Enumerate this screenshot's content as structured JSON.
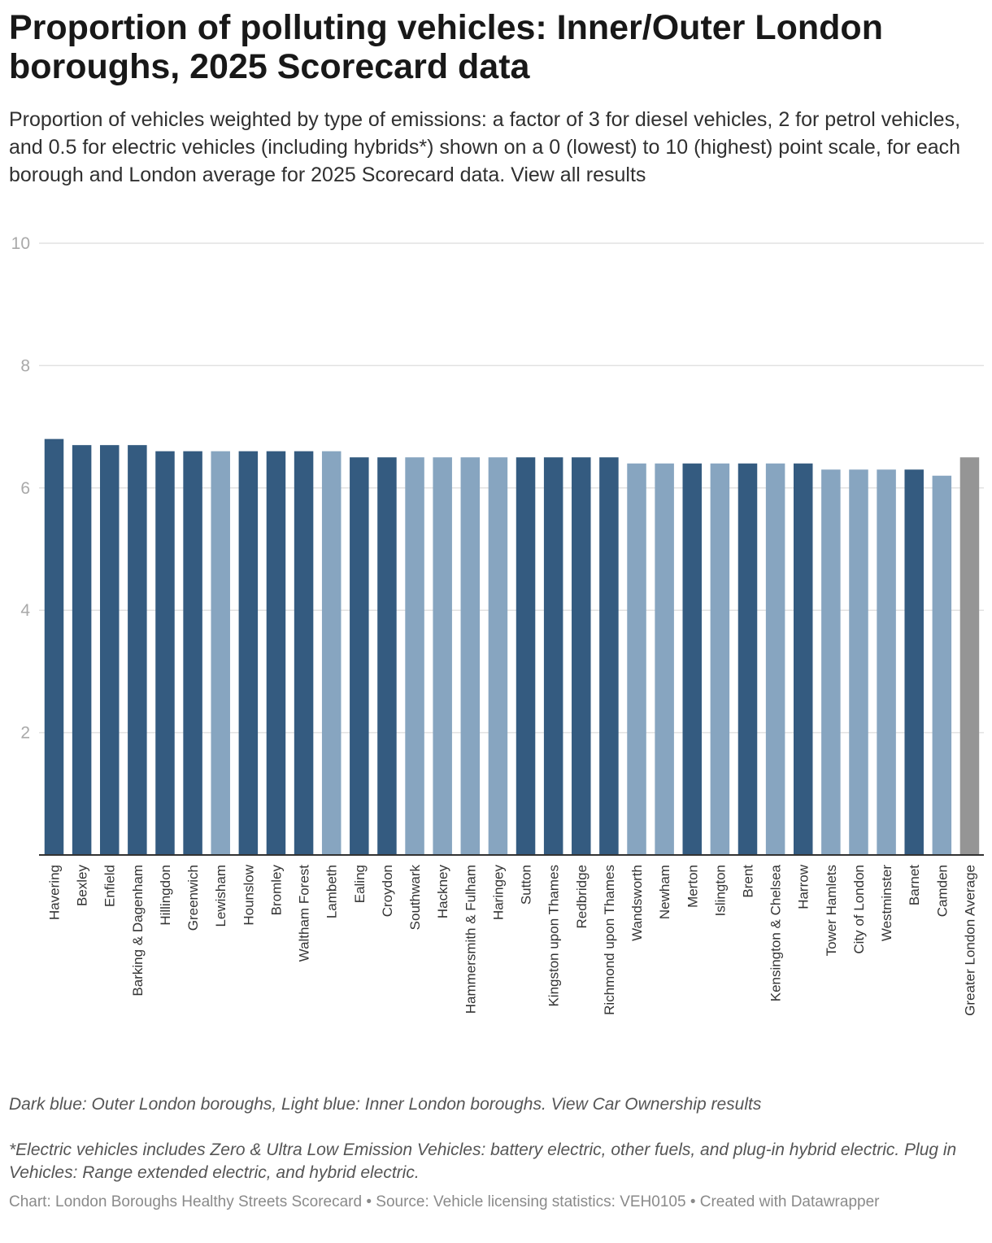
{
  "chart_data": {
    "type": "bar",
    "title": "Proportion of polluting vehicles: Inner/Outer London boroughs, 2025 Scorecard data",
    "subtitle": "Proportion of vehicles weighted by type of emissions: a factor of 3 for diesel vehicles, 2 for petrol vehicles, and 0.5 for electric vehicles (including hybrids*) shown on a 0 (lowest) to 10 (highest) point scale, for each borough and London average for 2025 Scorecard data. View all results",
    "xlabel": "",
    "ylabel": "",
    "ylim": [
      0,
      10
    ],
    "yticks": [
      2,
      4,
      6,
      8,
      10
    ],
    "grid": true,
    "categories": [
      "Havering",
      "Bexley",
      "Enfield",
      "Barking & Dagenham",
      "Hillingdon",
      "Greenwich",
      "Lewisham",
      "Hounslow",
      "Bromley",
      "Waltham Forest",
      "Lambeth",
      "Ealing",
      "Croydon",
      "Southwark",
      "Hackney",
      "Hammersmith & Fulham",
      "Haringey",
      "Sutton",
      "Kingston upon Thames",
      "Redbridge",
      "Richmond upon Thames",
      "Wandsworth",
      "Newham",
      "Merton",
      "Islington",
      "Brent",
      "Kensington & Chelsea",
      "Harrow",
      "Tower Hamlets",
      "City of London",
      "Westminster",
      "Barnet",
      "Camden",
      "Greater London Average"
    ],
    "values": [
      6.8,
      6.7,
      6.7,
      6.7,
      6.6,
      6.6,
      6.6,
      6.6,
      6.6,
      6.6,
      6.6,
      6.5,
      6.5,
      6.5,
      6.5,
      6.5,
      6.5,
      6.5,
      6.5,
      6.5,
      6.5,
      6.4,
      6.4,
      6.4,
      6.4,
      6.4,
      6.4,
      6.4,
      6.3,
      6.3,
      6.3,
      6.3,
      6.2,
      6.5
    ],
    "groups": [
      "outer",
      "outer",
      "outer",
      "outer",
      "outer",
      "outer",
      "inner",
      "outer",
      "outer",
      "outer",
      "inner",
      "outer",
      "outer",
      "inner",
      "inner",
      "inner",
      "inner",
      "outer",
      "outer",
      "outer",
      "outer",
      "inner",
      "inner",
      "outer",
      "inner",
      "outer",
      "inner",
      "outer",
      "inner",
      "inner",
      "inner",
      "outer",
      "inner",
      "average"
    ],
    "colors": {
      "outer": "#345b80",
      "inner": "#87a5c0",
      "average": "#959595",
      "grid": "#e2e2e2",
      "baseline": "#333333"
    }
  },
  "notes": {
    "color_key": "Dark blue: Outer London boroughs, Light blue: Inner London boroughs. View Car Ownership results",
    "electric_definition": "*Electric vehicles includes Zero & Ultra Low Emission Vehicles: battery electric, other fuels, and plug-in hybrid electric. Plug in Vehicles: Range extended electric, and hybrid electric."
  },
  "footer": "Chart: London Boroughs Healthy Streets Scorecard • Source: Vehicle licensing statistics: VEH0105 • Created with Datawrapper"
}
